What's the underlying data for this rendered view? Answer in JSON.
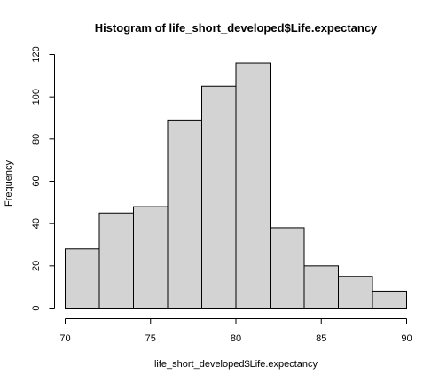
{
  "chart_data": {
    "type": "bar",
    "title": "Histogram of life_short_developed$Life.expectancy",
    "xlabel": "life_short_developed$Life.expectancy",
    "ylabel": "Frequency",
    "bins": [
      {
        "from": 70,
        "to": 72,
        "count": 28
      },
      {
        "from": 72,
        "to": 74,
        "count": 45
      },
      {
        "from": 74,
        "to": 76,
        "count": 48
      },
      {
        "from": 76,
        "to": 78,
        "count": 89
      },
      {
        "from": 78,
        "to": 80,
        "count": 105
      },
      {
        "from": 80,
        "to": 82,
        "count": 116
      },
      {
        "from": 82,
        "to": 84,
        "count": 38
      },
      {
        "from": 84,
        "to": 86,
        "count": 20
      },
      {
        "from": 86,
        "to": 88,
        "count": 15
      },
      {
        "from": 88,
        "to": 90,
        "count": 8
      }
    ],
    "xlim": [
      70,
      90
    ],
    "ylim": [
      0,
      120
    ],
    "xticks": [
      "70",
      "75",
      "80",
      "85",
      "90"
    ],
    "yticks": [
      "0",
      "20",
      "40",
      "60",
      "80",
      "100",
      "120"
    ],
    "bar_fill": "#d3d3d3",
    "grid": false
  }
}
